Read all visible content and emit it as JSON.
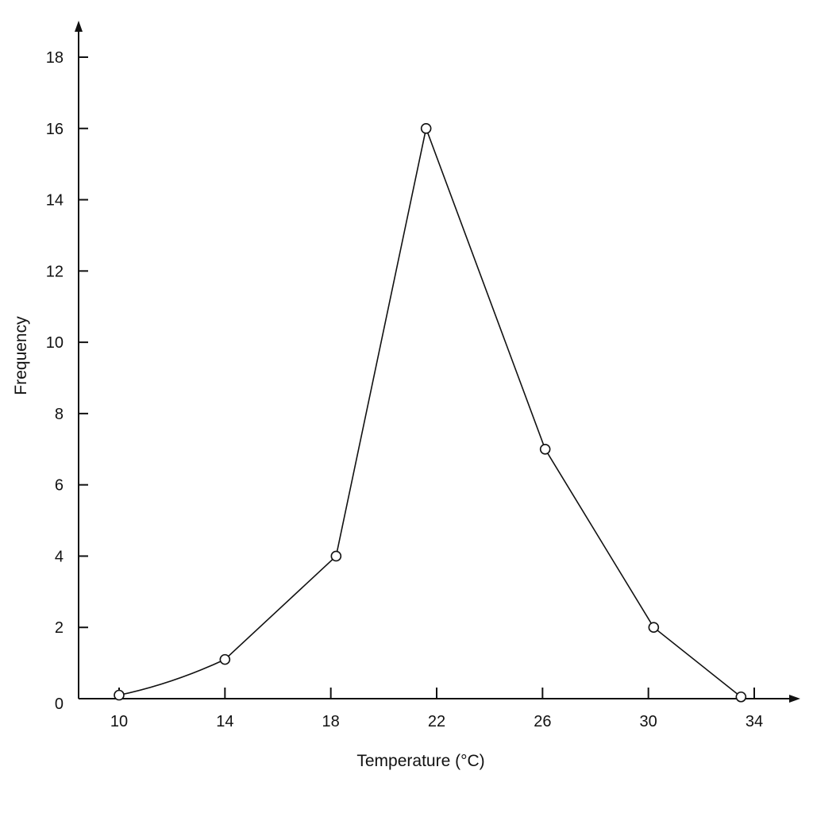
{
  "chart_data": {
    "type": "line",
    "title": "",
    "xlabel": "Temperature (°C)",
    "ylabel": "Frequency",
    "xlim": [
      8.5,
      36
    ],
    "ylim": [
      0,
      19
    ],
    "x_ticks": [
      10,
      14,
      18,
      22,
      26,
      30,
      34
    ],
    "y_ticks": [
      0,
      2,
      4,
      6,
      8,
      10,
      12,
      14,
      16,
      18
    ],
    "grid": false,
    "legend": "none",
    "series": [
      {
        "x": [
          10,
          14,
          18.2,
          21.6,
          26.1,
          30.2,
          33.5
        ],
        "y": [
          0.1,
          1.1,
          4,
          16,
          7,
          2,
          0.05
        ]
      }
    ],
    "colors": {
      "line": "#111111",
      "marker_fill": "#ffffff"
    }
  }
}
